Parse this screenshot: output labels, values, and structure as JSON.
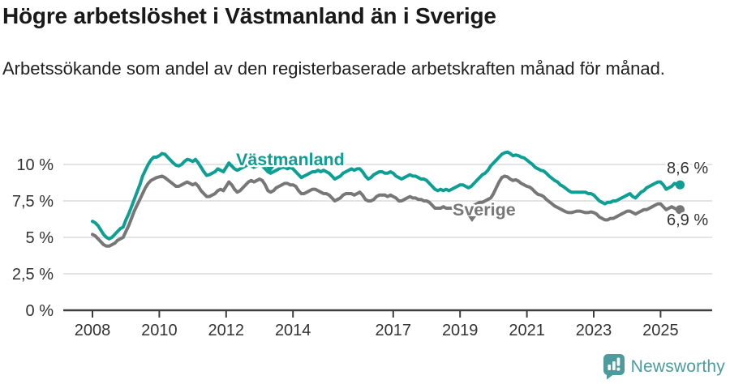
{
  "header": {
    "title": "Högre arbetslöshet i Västmanland än i Sverige",
    "subtitle": "Arbetssökande som andel av den registerbaserade arbetskraften månad för månad."
  },
  "chart_data": {
    "type": "line",
    "unit": "%",
    "x_frequency": "monthly",
    "x_start": "2008-01",
    "x_end": "2025-08",
    "grid": "horizontal",
    "legend_position": "inline-labels",
    "ylim": [
      0,
      11.5
    ],
    "y_ticks": [
      {
        "label": "0 %",
        "value": 0
      },
      {
        "label": "2,5 %",
        "value": 2.5
      },
      {
        "label": "5 %",
        "value": 5
      },
      {
        "label": "7,5 %",
        "value": 7.5
      },
      {
        "label": "10 %",
        "value": 10
      }
    ],
    "x_ticks": [
      {
        "label": "2008",
        "year": 2008
      },
      {
        "label": "2010",
        "year": 2010
      },
      {
        "label": "2012",
        "year": 2012
      },
      {
        "label": "2014",
        "year": 2014
      },
      {
        "label": "2017",
        "year": 2017
      },
      {
        "label": "2019",
        "year": 2019
      },
      {
        "label": "2021",
        "year": 2021
      },
      {
        "label": "2023",
        "year": 2023
      },
      {
        "label": "2025",
        "year": 2025
      }
    ],
    "colors": {
      "vastmanland": "#0d9f94",
      "sverige": "#777777",
      "grid": "#dcdcdc",
      "axis": "#3d3d3d",
      "tick_text": "#333333"
    },
    "series": [
      {
        "name": "Västmanland",
        "color": "#0d9f94",
        "end_label": "8,6 %",
        "end_value": 8.6,
        "values": [
          6.1,
          6.0,
          5.8,
          5.5,
          5.2,
          5.0,
          4.9,
          5.0,
          5.2,
          5.4,
          5.6,
          5.7,
          6.2,
          6.6,
          7.1,
          7.6,
          8.1,
          8.6,
          9.2,
          9.6,
          10.0,
          10.3,
          10.5,
          10.5,
          10.6,
          10.75,
          10.7,
          10.5,
          10.3,
          10.1,
          9.95,
          9.9,
          10.0,
          10.2,
          10.35,
          10.3,
          10.2,
          10.35,
          10.1,
          9.8,
          9.5,
          9.25,
          9.3,
          9.4,
          9.5,
          9.7,
          9.6,
          9.5,
          9.8,
          10.1,
          9.9,
          9.7,
          9.6,
          9.7,
          9.8,
          9.9,
          10.0,
          9.9,
          9.8,
          9.9,
          10.0,
          9.9,
          9.7,
          9.5,
          9.4,
          9.5,
          9.6,
          9.7,
          9.8,
          9.8,
          9.7,
          9.8,
          9.7,
          9.5,
          9.3,
          9.1,
          9.2,
          9.3,
          9.4,
          9.5,
          9.5,
          9.6,
          9.5,
          9.6,
          9.5,
          9.4,
          9.2,
          9.0,
          9.1,
          9.2,
          9.4,
          9.5,
          9.6,
          9.7,
          9.6,
          9.7,
          9.7,
          9.5,
          9.2,
          9.0,
          9.1,
          9.3,
          9.4,
          9.5,
          9.5,
          9.4,
          9.4,
          9.5,
          9.4,
          9.2,
          9.1,
          9.0,
          9.1,
          9.2,
          9.3,
          9.2,
          9.2,
          9.1,
          9.0,
          9.0,
          8.9,
          8.7,
          8.5,
          8.3,
          8.2,
          8.3,
          8.2,
          8.3,
          8.2,
          8.3,
          8.4,
          8.5,
          8.6,
          8.6,
          8.5,
          8.4,
          8.5,
          8.7,
          8.9,
          9.1,
          9.3,
          9.4,
          9.6,
          9.9,
          10.1,
          10.3,
          10.5,
          10.7,
          10.8,
          10.85,
          10.75,
          10.6,
          10.65,
          10.6,
          10.5,
          10.45,
          10.3,
          10.15,
          10.0,
          9.8,
          9.7,
          9.6,
          9.55,
          9.4,
          9.2,
          9.05,
          8.9,
          8.8,
          8.6,
          8.5,
          8.35,
          8.2,
          8.1,
          8.1,
          8.1,
          8.1,
          8.1,
          8.1,
          8.0,
          8.0,
          7.9,
          7.7,
          7.5,
          7.4,
          7.3,
          7.4,
          7.4,
          7.5,
          7.5,
          7.6,
          7.7,
          7.8,
          7.9,
          8.0,
          7.8,
          7.7,
          7.9,
          8.1,
          8.2,
          8.4,
          8.5,
          8.6,
          8.7,
          8.8,
          8.8,
          8.6,
          8.3,
          8.4,
          8.5,
          8.7,
          8.6,
          8.6
        ]
      },
      {
        "name": "Sverige",
        "color": "#777777",
        "end_label": "6,9 %",
        "end_value": 6.9,
        "values": [
          5.2,
          5.1,
          4.9,
          4.7,
          4.5,
          4.4,
          4.4,
          4.5,
          4.6,
          4.8,
          4.9,
          5.0,
          5.4,
          5.8,
          6.3,
          6.8,
          7.2,
          7.6,
          8.0,
          8.4,
          8.7,
          8.9,
          9.0,
          9.1,
          9.15,
          9.2,
          9.1,
          8.95,
          8.8,
          8.65,
          8.5,
          8.5,
          8.6,
          8.7,
          8.8,
          8.7,
          8.6,
          8.7,
          8.5,
          8.2,
          8.0,
          7.8,
          7.8,
          7.9,
          8.0,
          8.2,
          8.3,
          8.2,
          8.5,
          8.8,
          8.6,
          8.3,
          8.1,
          8.2,
          8.4,
          8.6,
          8.8,
          8.9,
          8.8,
          8.9,
          9.0,
          8.9,
          8.6,
          8.2,
          8.1,
          8.2,
          8.4,
          8.5,
          8.6,
          8.7,
          8.7,
          8.6,
          8.6,
          8.5,
          8.2,
          8.0,
          8.0,
          8.1,
          8.2,
          8.3,
          8.3,
          8.2,
          8.1,
          8.0,
          8.0,
          7.9,
          7.7,
          7.5,
          7.6,
          7.7,
          7.9,
          8.0,
          8.0,
          8.0,
          7.9,
          8.0,
          8.1,
          7.9,
          7.6,
          7.5,
          7.5,
          7.6,
          7.8,
          7.9,
          7.9,
          7.9,
          7.8,
          7.9,
          7.8,
          7.7,
          7.5,
          7.5,
          7.6,
          7.7,
          7.8,
          7.7,
          7.7,
          7.6,
          7.6,
          7.5,
          7.5,
          7.4,
          7.2,
          7.0,
          7.0,
          7.0,
          7.1,
          7.0,
          7.0,
          7.0,
          7.1,
          7.1,
          7.1,
          7.1,
          7.0,
          7.0,
          7.1,
          7.2,
          7.3,
          7.4,
          7.4,
          7.5,
          7.6,
          7.7,
          8.0,
          8.4,
          8.8,
          9.1,
          9.2,
          9.15,
          9.0,
          8.9,
          8.95,
          8.85,
          8.7,
          8.6,
          8.5,
          8.45,
          8.3,
          8.1,
          7.95,
          7.9,
          7.8,
          7.6,
          7.45,
          7.3,
          7.15,
          7.05,
          6.95,
          6.85,
          6.75,
          6.7,
          6.7,
          6.75,
          6.8,
          6.8,
          6.75,
          6.7,
          6.7,
          6.75,
          6.7,
          6.6,
          6.4,
          6.3,
          6.2,
          6.2,
          6.3,
          6.3,
          6.4,
          6.5,
          6.6,
          6.7,
          6.8,
          6.8,
          6.7,
          6.6,
          6.7,
          6.8,
          6.9,
          6.9,
          7.0,
          7.1,
          7.2,
          7.3,
          7.3,
          7.1,
          6.9,
          7.0,
          7.1,
          7.0,
          6.9,
          6.9
        ]
      }
    ]
  },
  "footer": {
    "brand": "Newsworthy",
    "logo_color": "#4d9b9c",
    "logo_icon": "newsworthy-speech-bubble-bar-chart"
  }
}
